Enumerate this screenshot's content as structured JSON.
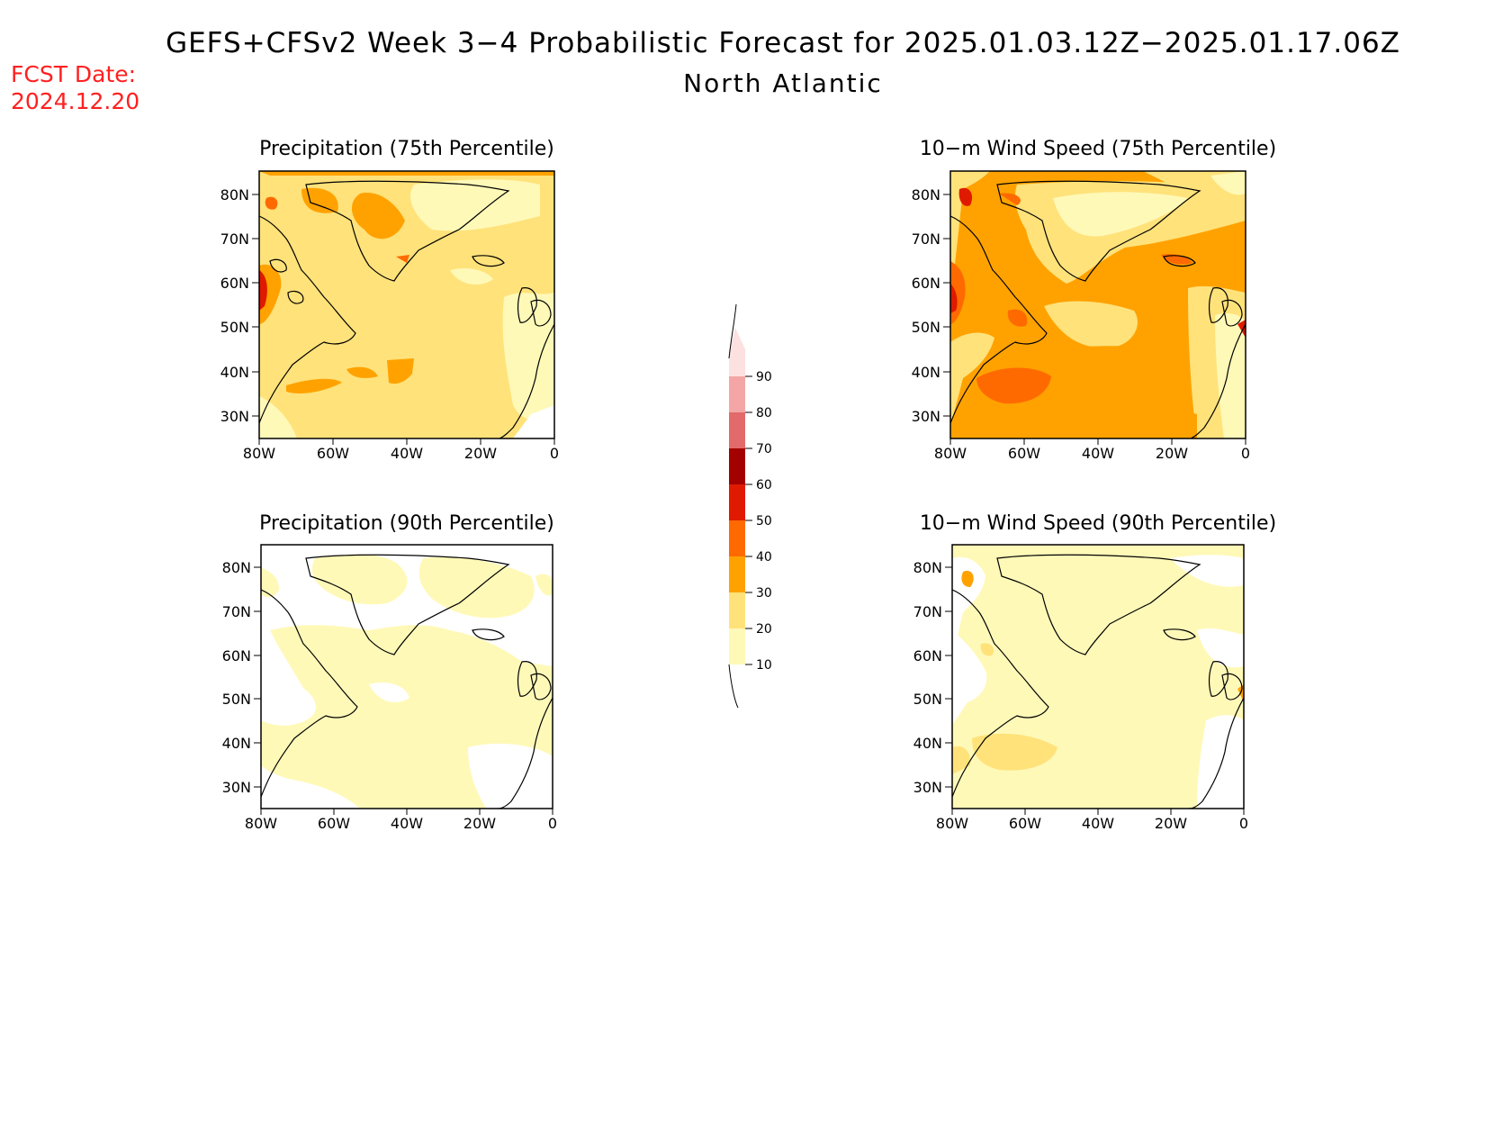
{
  "header": {
    "title": "GEFS+CFSv2 Week 3−4 Probabilistic Forecast for 2025.01.03.12Z−2025.01.17.06Z",
    "subtitle": "North Atlantic",
    "fcst_label": "FCST Date:",
    "fcst_date": "2024.12.20"
  },
  "axes": {
    "lat_labels": [
      "80N",
      "70N",
      "60N",
      "50N",
      "40N",
      "30N"
    ],
    "lon_labels": [
      "80W",
      "60W",
      "40W",
      "20W",
      "0"
    ]
  },
  "panels": [
    {
      "title": "Precipitation (75th Percentile)"
    },
    {
      "title": "10−m Wind Speed (75th Percentile)"
    },
    {
      "title": "Precipitation (90th Percentile)"
    },
    {
      "title": "10−m Wind Speed (90th Percentile)"
    }
  ],
  "legend": {
    "levels": [
      "10",
      "20",
      "30",
      "40",
      "50",
      "60",
      "70",
      "80",
      "90"
    ],
    "colors": [
      "#fff9b8",
      "#ffe27a",
      "#ffa200",
      "#ff6a00",
      "#e01a00",
      "#a30000",
      "#e26a6a",
      "#f4a6a6",
      "#fde0e0"
    ]
  }
}
